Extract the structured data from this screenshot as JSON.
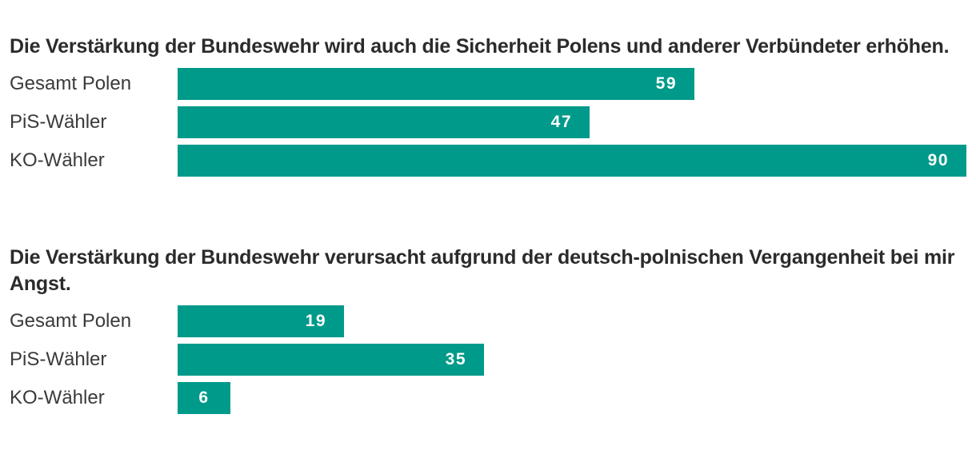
{
  "chart_data": [
    {
      "type": "bar",
      "orientation": "horizontal",
      "title": "Die Verstärkung der Bundeswehr wird auch die Sicherheit Polens und anderer Verbündeter erhöhen.",
      "categories": [
        "Gesamt Polen",
        "PiS-Wähler",
        "KO-Wähler"
      ],
      "values": [
        59,
        47,
        90
      ],
      "xlim": [
        0,
        90
      ],
      "xlabel": "",
      "ylabel": "",
      "grid": false,
      "bar_color": "#009a8a"
    },
    {
      "type": "bar",
      "orientation": "horizontal",
      "title": "Die Verstärkung der Bundeswehr verursacht aufgrund der deutsch-polnischen Vergangenheit bei mir Angst.",
      "categories": [
        "Gesamt Polen",
        "PiS-Wähler",
        "KO-Wähler"
      ],
      "values": [
        19,
        35,
        6
      ],
      "xlim": [
        0,
        90
      ],
      "xlabel": "",
      "ylabel": "",
      "grid": false,
      "bar_color": "#009a8a"
    }
  ]
}
